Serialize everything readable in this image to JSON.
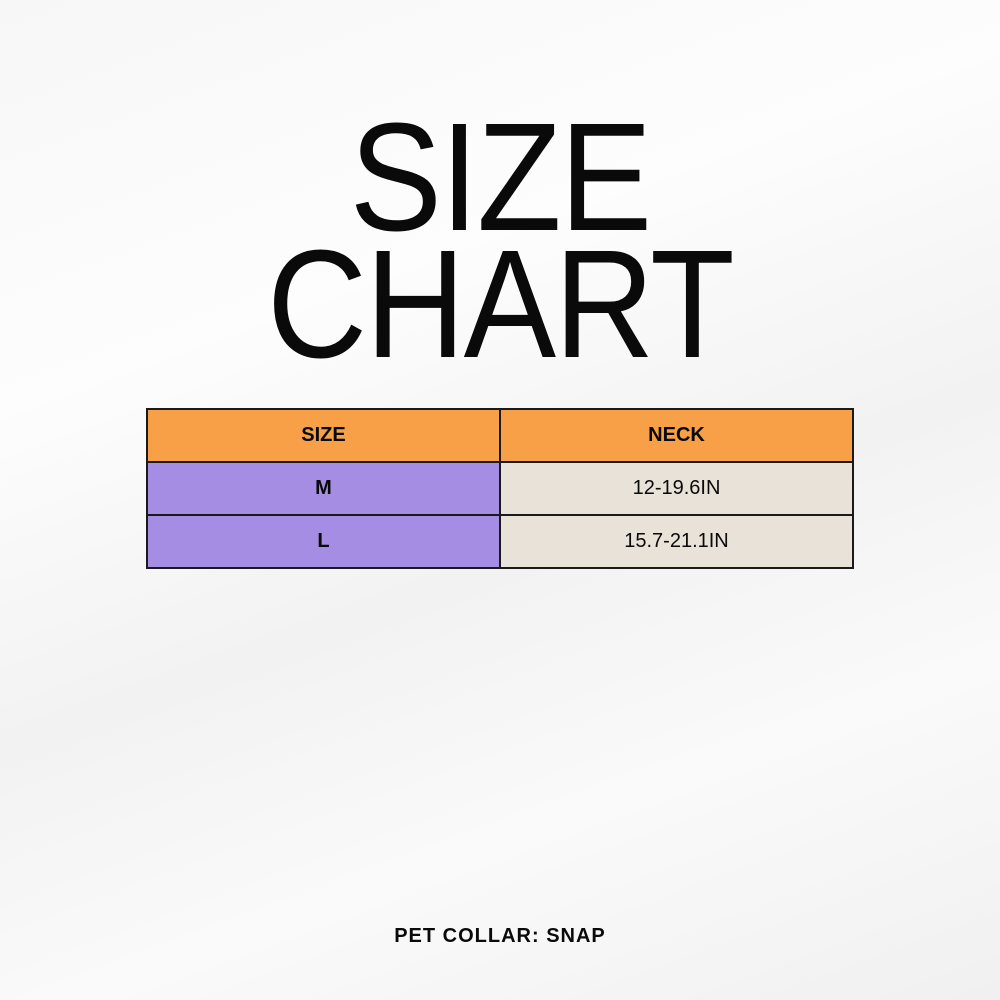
{
  "title": {
    "line1": "SIZE",
    "line2": "CHART"
  },
  "table": {
    "headers": [
      "SIZE",
      "NECK"
    ],
    "rows": [
      {
        "size": "M",
        "neck": "12-19.6IN"
      },
      {
        "size": "L",
        "neck": "15.7-21.1IN"
      }
    ],
    "colors": {
      "header": "#f7a047",
      "size_cell": "#a58de4",
      "value_cell": "#e8e2d8"
    }
  },
  "footer": "PET COLLAR: SNAP"
}
